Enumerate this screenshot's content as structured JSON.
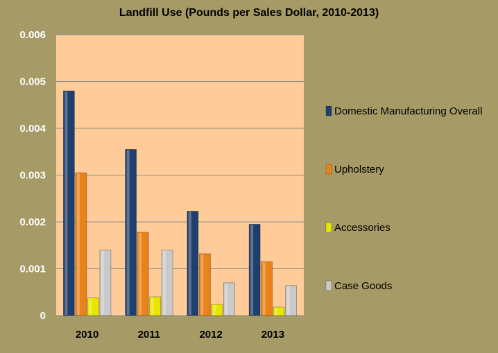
{
  "chart_data": {
    "type": "bar",
    "title": "Landfill Use (Pounds per Sales Dollar, 2010-2013)",
    "xlabel": "",
    "ylabel": "",
    "categories": [
      "2010",
      "2011",
      "2012",
      "2013"
    ],
    "ylim": [
      0,
      0.006
    ],
    "yticks": [
      0,
      0.001,
      0.002,
      0.003,
      0.004,
      0.005,
      0.006
    ],
    "ytick_labels": [
      "0",
      "0.001",
      "0.002",
      "0.003",
      "0.004",
      "0.005",
      "0.006"
    ],
    "grid": true,
    "legend_position": "right",
    "series": [
      {
        "name": "Domestic Manufacturing Overall",
        "color": "#1f3f6e",
        "values": [
          0.0048,
          0.00355,
          0.00223,
          0.00195
        ]
      },
      {
        "name": "Upholstery",
        "color": "#e8821a",
        "values": [
          0.00305,
          0.00178,
          0.00132,
          0.00115
        ]
      },
      {
        "name": "Accessories",
        "color": "#e6e600",
        "values": [
          0.00038,
          0.0004,
          0.00024,
          0.00018
        ]
      },
      {
        "name": "Case Goods",
        "color": "#c9c9c9",
        "values": [
          0.0014,
          0.0014,
          0.0007,
          0.00064
        ]
      }
    ],
    "colors": {
      "page_background": "#a69a66",
      "plot_background": "#ffcc99",
      "gridline": "#8c8c8c"
    }
  }
}
